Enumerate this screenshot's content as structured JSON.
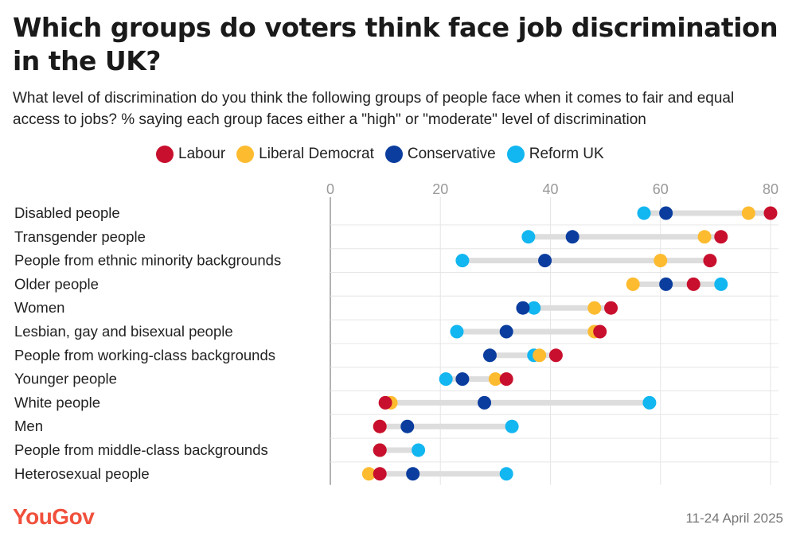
{
  "title": "Which groups do voters think face job discrimination in the UK?",
  "subtitle": "What level of discrimination do you think the following groups of people face when it comes to fair and equal access to jobs? % saying each group faces either a \"high\" or \"moderate\" level of discrimination",
  "brand": "YouGov",
  "date": "11-24 April 2025",
  "colors": {
    "Labour": "#c8102e",
    "Liberal Democrat": "#fdbb30",
    "Conservative": "#0a3d9e",
    "Reform UK": "#12b6f0",
    "range_bar": "#dddddd",
    "grid": "#e6e6e6",
    "axis": "#999999"
  },
  "chart_data": {
    "type": "scatter",
    "subtype": "dot-range",
    "xlim": [
      0,
      80
    ],
    "xticks": [
      "0",
      "20",
      "40",
      "60",
      "80"
    ],
    "grid": true,
    "legend_position": "top",
    "series_names": [
      "Labour",
      "Liberal Democrat",
      "Conservative",
      "Reform UK"
    ],
    "categories": [
      "Disabled people",
      "Transgender people",
      "People from ethnic minority backgrounds",
      "Older people",
      "Women",
      "Lesbian, gay and bisexual people",
      "People from working-class backgrounds",
      "Younger people",
      "White people",
      "Men",
      "People from middle-class backgrounds",
      "Heterosexual people"
    ],
    "series": [
      {
        "name": "Labour",
        "values": [
          80,
          71,
          69,
          66,
          51,
          49,
          41,
          32,
          10,
          9,
          9,
          9
        ]
      },
      {
        "name": "Liberal Democrat",
        "values": [
          76,
          68,
          60,
          55,
          48,
          48,
          38,
          30,
          11,
          9,
          9,
          7
        ]
      },
      {
        "name": "Conservative",
        "values": [
          61,
          44,
          39,
          61,
          35,
          32,
          29,
          24,
          28,
          14,
          9,
          15
        ]
      },
      {
        "name": "Reform UK",
        "values": [
          57,
          36,
          24,
          71,
          37,
          23,
          37,
          21,
          58,
          33,
          16,
          32
        ]
      }
    ]
  }
}
